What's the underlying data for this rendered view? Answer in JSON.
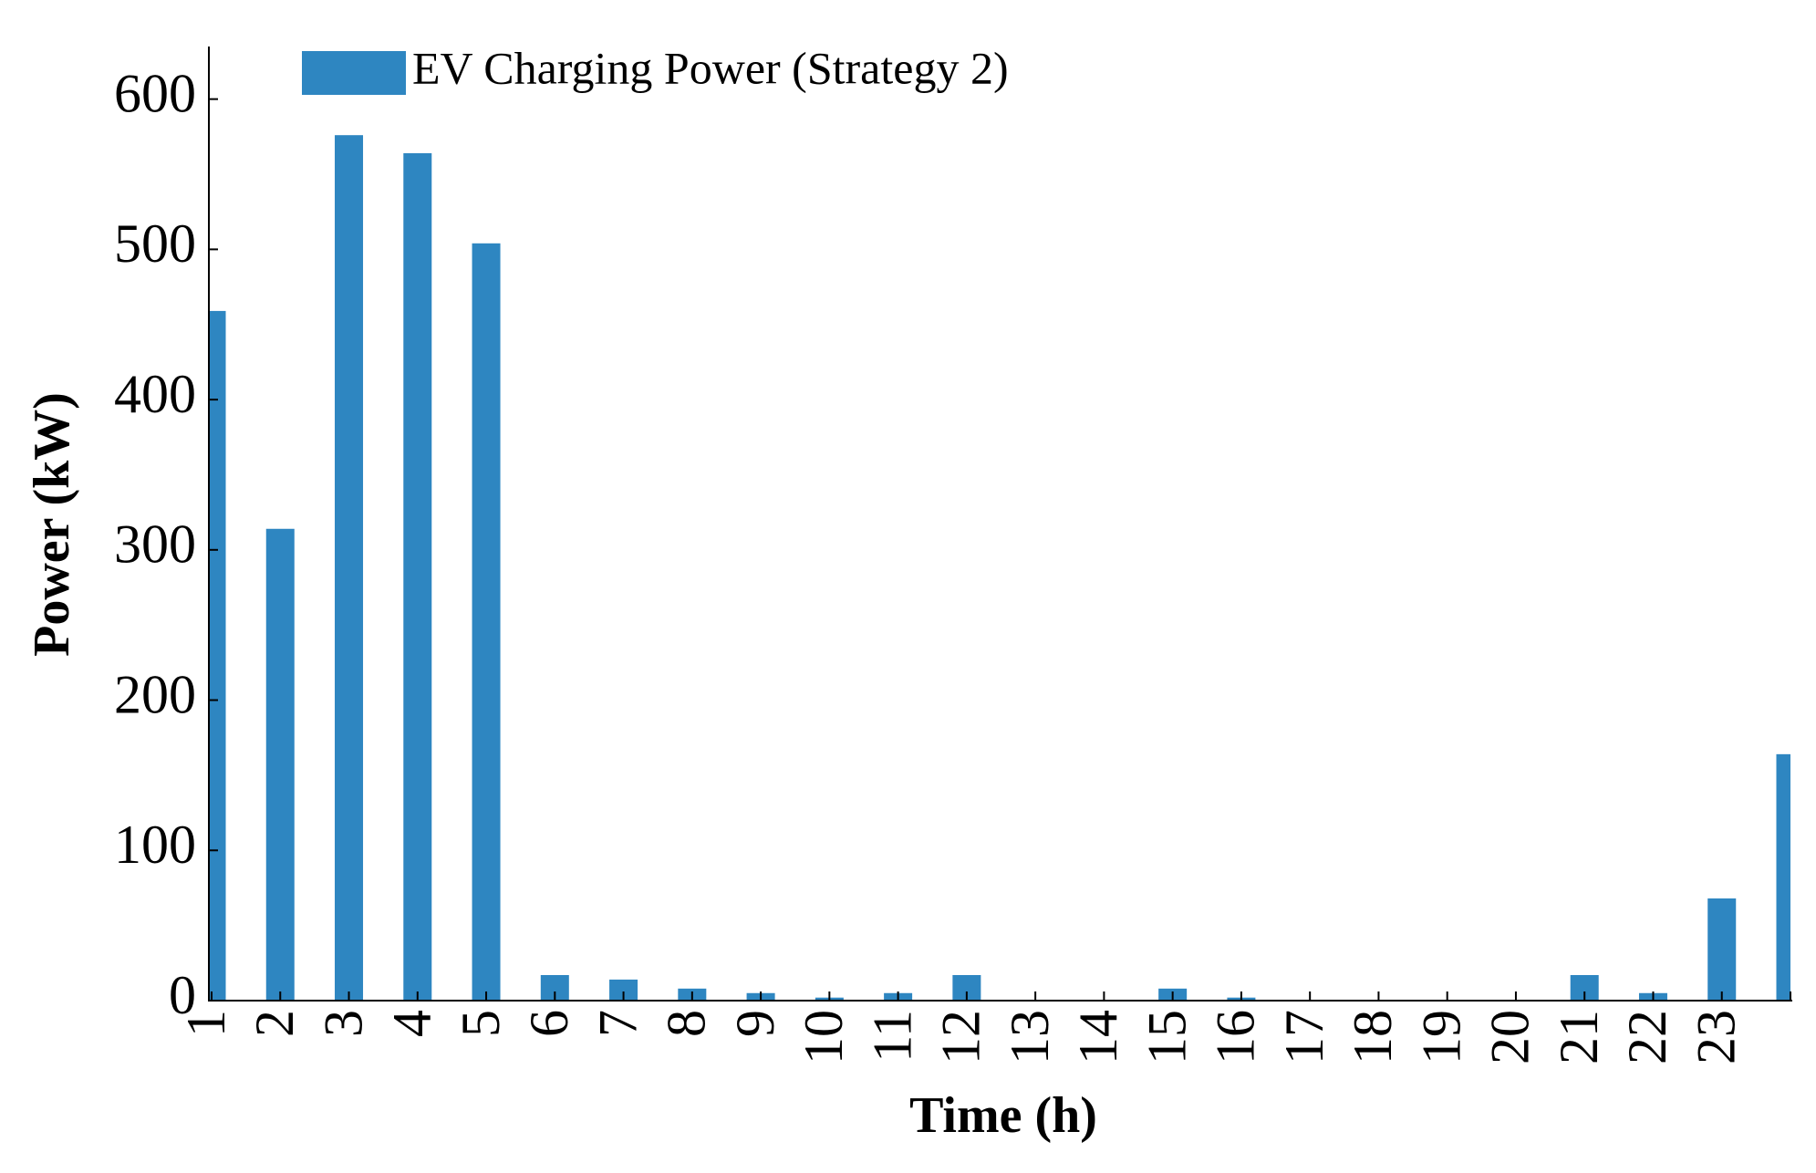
{
  "chart_data": {
    "type": "bar",
    "x_label": "Time (h)",
    "y_label": "Power (kW)",
    "categories": [
      "1",
      "2",
      "3",
      "4",
      "5",
      "6",
      "7",
      "8",
      "9",
      "10",
      "11",
      "12",
      "13",
      "14",
      "15",
      "16",
      "17",
      "18",
      "19",
      "20",
      "21",
      "22",
      "23",
      null
    ],
    "series": [
      {
        "name": "EV Charging Power (Strategy 2)",
        "color": "#2e86c1",
        "values": [
          459,
          314,
          576,
          564,
          504,
          17,
          14,
          8,
          5,
          2,
          5,
          17,
          0,
          0,
          8,
          2,
          0,
          0,
          0,
          0,
          17,
          5,
          68,
          164
        ]
      }
    ],
    "ylim": [
      0,
      635
    ],
    "yticks": [
      0,
      100,
      200,
      300,
      400,
      500,
      600
    ],
    "grid": false,
    "legend": "top-left"
  }
}
